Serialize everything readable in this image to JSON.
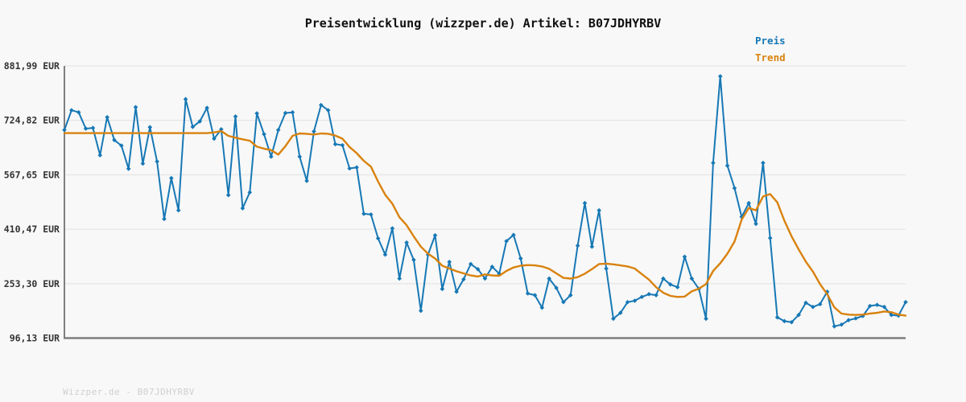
{
  "title": "Preisentwicklung (wizzper.de) Artikel: B07JDHYRBV",
  "watermark": "Wizzper.de - B07JDHYRBV",
  "legend": [
    {
      "label": "Preis",
      "color": "#1778b5"
    },
    {
      "label": "Trend",
      "color": "#d9820e"
    }
  ],
  "colors": {
    "background": "#f8f8f8",
    "gridline": "#e7e7e7",
    "axis": "#7f7f7f",
    "tick_label": "#333333",
    "price_line": "#1778b5",
    "trend_line": "#d9820e"
  },
  "chart_data": {
    "type": "line",
    "title": "Preisentwicklung (wizzper.de) Artikel: B07JDHYRBV",
    "xlabel": "",
    "ylabel": "",
    "currency": "EUR",
    "ylim": [
      96.13,
      881.99
    ],
    "grid": true,
    "legend_position": "top-right",
    "y_ticks": [
      {
        "label": "881,99 EUR",
        "value": 881.99
      },
      {
        "label": "724,82 EUR",
        "value": 724.82
      },
      {
        "label": "567,65 EUR",
        "value": 567.65
      },
      {
        "label": "410,47 EUR",
        "value": 410.47
      },
      {
        "label": "253,30 EUR",
        "value": 253.3
      },
      {
        "label": "96,13 EUR",
        "value": 96.13
      }
    ],
    "x_tick_labels": [],
    "series": [
      {
        "name": "Preis",
        "color": "#1778b5",
        "marker": "diamond",
        "values": [
          697,
          754,
          748,
          701,
          703,
          624,
          734,
          668,
          652,
          585,
          763,
          600,
          705,
          606,
          440,
          558,
          465,
          786,
          706,
          722,
          761,
          672,
          699,
          509,
          736,
          471,
          517,
          745,
          685,
          620,
          697,
          746,
          748,
          620,
          550,
          693,
          769,
          754,
          656,
          653,
          586,
          589,
          455,
          453,
          384,
          337,
          413,
          268,
          372,
          322,
          175,
          337,
          393,
          238,
          316,
          230,
          266,
          310,
          295,
          268,
          302,
          282,
          376,
          394,
          326,
          225,
          220,
          184,
          268,
          241,
          200,
          220,
          363,
          486,
          360,
          465,
          297,
          152,
          169,
          200,
          204,
          215,
          223,
          220,
          268,
          251,
          243,
          331,
          268,
          238,
          152,
          602,
          852,
          594,
          529,
          446,
          486,
          426,
          602,
          385,
          156,
          145,
          142,
          163,
          198,
          186,
          194,
          230,
          130,
          135,
          148,
          153,
          160,
          189,
          192,
          186,
          163,
          161,
          200
        ]
      },
      {
        "name": "Trend",
        "color": "#d9820e",
        "marker": "none",
        "values": [
          688,
          688,
          688,
          688,
          688,
          688,
          688,
          688,
          688,
          688,
          688,
          688,
          688,
          688,
          688,
          688,
          688,
          688,
          688,
          688,
          688,
          690,
          694,
          680,
          675,
          670,
          666,
          649,
          643,
          639,
          626,
          650,
          680,
          687,
          686,
          684,
          687,
          686,
          681,
          672,
          648,
          630,
          608,
          591,
          548,
          510,
          484,
          445,
          422,
          390,
          360,
          340,
          326,
          305,
          297,
          289,
          283,
          277,
          274,
          280,
          277,
          276,
          290,
          300,
          305,
          307,
          306,
          303,
          296,
          283,
          270,
          268,
          272,
          282,
          295,
          310,
          311,
          309,
          306,
          303,
          297,
          281,
          265,
          243,
          227,
          218,
          215,
          216,
          231,
          239,
          252,
          290,
          312,
          340,
          375,
          438,
          472,
          465,
          505,
          512,
          488,
          435,
          390,
          352,
          317,
          288,
          252,
          223,
          185,
          167,
          164,
          163,
          164,
          167,
          169,
          173,
          171,
          164,
          161
        ]
      }
    ]
  }
}
